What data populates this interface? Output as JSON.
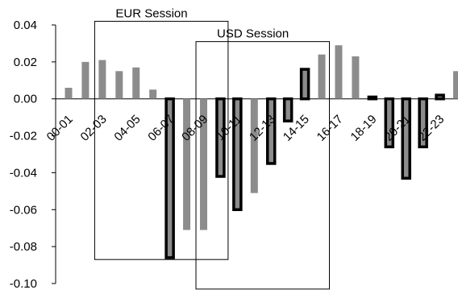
{
  "chart_data": {
    "type": "bar",
    "categories": [
      "00-01",
      "",
      "02-03",
      "",
      "04-05",
      "",
      "06-07",
      "",
      "08-09",
      "",
      "10-11",
      "",
      "12-13",
      "",
      "14-15",
      "",
      "16-17",
      "",
      "18-19",
      "",
      "20-21",
      "",
      "22-23",
      ""
    ],
    "values": [
      0.006,
      0.02,
      0.021,
      0.015,
      0.017,
      0.005,
      -0.086,
      -0.071,
      -0.071,
      -0.042,
      -0.06,
      -0.051,
      -0.035,
      -0.012,
      0.016,
      0.024,
      0.029,
      0.023,
      0.001,
      -0.026,
      -0.043,
      -0.026,
      0.002,
      0.015
    ],
    "highlighted": [
      false,
      false,
      false,
      false,
      false,
      false,
      true,
      false,
      false,
      true,
      true,
      false,
      true,
      true,
      true,
      false,
      false,
      false,
      true,
      true,
      true,
      true,
      true,
      false
    ],
    "ylim": [
      -0.1,
      0.04
    ],
    "yticks": [
      "0.04",
      "0.02",
      "0.00",
      "-0.02",
      "-0.04",
      "-0.06",
      "-0.08",
      "-0.10"
    ],
    "ytick_values": [
      0.04,
      0.02,
      0.0,
      -0.02,
      -0.04,
      -0.06,
      -0.08,
      -0.1
    ],
    "title": "",
    "xlabel": "",
    "ylabel": "",
    "colors": {
      "plain_bar": "#8c8c8c",
      "highlight_border": "#000000",
      "highlight_fill": "#8c8c8c"
    },
    "sessions": [
      {
        "label": "EUR Session",
        "start_category": 2,
        "end_category": 9,
        "y_top": 0.042,
        "y_bottom": -0.087
      },
      {
        "label": "USD  Session",
        "start_category": 8,
        "end_category": 15,
        "y_top": 0.031,
        "y_bottom": -0.103
      }
    ]
  }
}
